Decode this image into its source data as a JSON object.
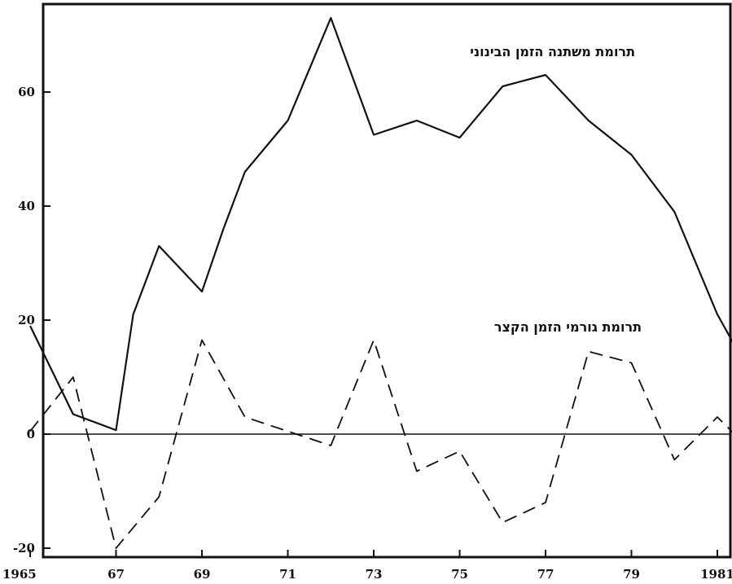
{
  "chart_data": {
    "type": "line",
    "title": "",
    "xlabel": "",
    "ylabel": "",
    "xlim": [
      1965,
      1982.5
    ],
    "ylim": [
      -20,
      75
    ],
    "x": [
      1965,
      1966,
      1967,
      1967.4,
      1968,
      1969,
      1969.5,
      1970,
      1971,
      1972,
      1973,
      1974,
      1975,
      1976,
      1977,
      1978,
      1979,
      1980,
      1981,
      1982
    ],
    "x_ticks": [
      {
        "value": 1965,
        "label": "1965"
      },
      {
        "value": 1967,
        "label": "67"
      },
      {
        "value": 1969,
        "label": "69"
      },
      {
        "value": 1971,
        "label": "71"
      },
      {
        "value": 1973,
        "label": "73"
      },
      {
        "value": 1975,
        "label": "75"
      },
      {
        "value": 1977,
        "label": "77"
      },
      {
        "value": 1979,
        "label": "79"
      },
      {
        "value": 1981,
        "label": "1981"
      }
    ],
    "y_ticks": [
      {
        "value": -20,
        "label": "-20"
      },
      {
        "value": 0,
        "label": "0"
      },
      {
        "value": 20,
        "label": "20"
      },
      {
        "value": 40,
        "label": "40"
      },
      {
        "value": 60,
        "label": "60"
      }
    ],
    "series": [
      {
        "name": "תרומת משתנה הזמן הבינוני",
        "style": "solid",
        "x": [
          1965,
          1966,
          1967,
          1967.4,
          1968,
          1969,
          1969.5,
          1970,
          1971,
          1972,
          1973,
          1974,
          1975,
          1976,
          1977,
          1978,
          1979,
          1980,
          1981,
          1982
        ],
        "values": [
          19,
          3.5,
          0.7,
          21,
          33,
          25,
          36,
          46,
          55,
          73,
          52.5,
          55,
          52,
          61,
          63,
          55,
          49,
          39,
          21,
          7.5
        ]
      },
      {
        "name": "תרומת גורמי הזמן הקצר",
        "style": "dashed",
        "x": [
          1965,
          1966,
          1967,
          1968,
          1969,
          1970,
          1971,
          1972,
          1973,
          1974,
          1975,
          1976,
          1977,
          1978,
          1979,
          1980,
          1981,
          1982
        ],
        "values": [
          0.5,
          10,
          -20,
          -11,
          16.5,
          3,
          0.5,
          -2,
          16.5,
          -6.5,
          -3,
          -15.5,
          -12,
          14.5,
          12.5,
          -4.5,
          3,
          -4.5
        ]
      }
    ],
    "reference_line": 0,
    "grid": false,
    "legend": "inline labels"
  }
}
